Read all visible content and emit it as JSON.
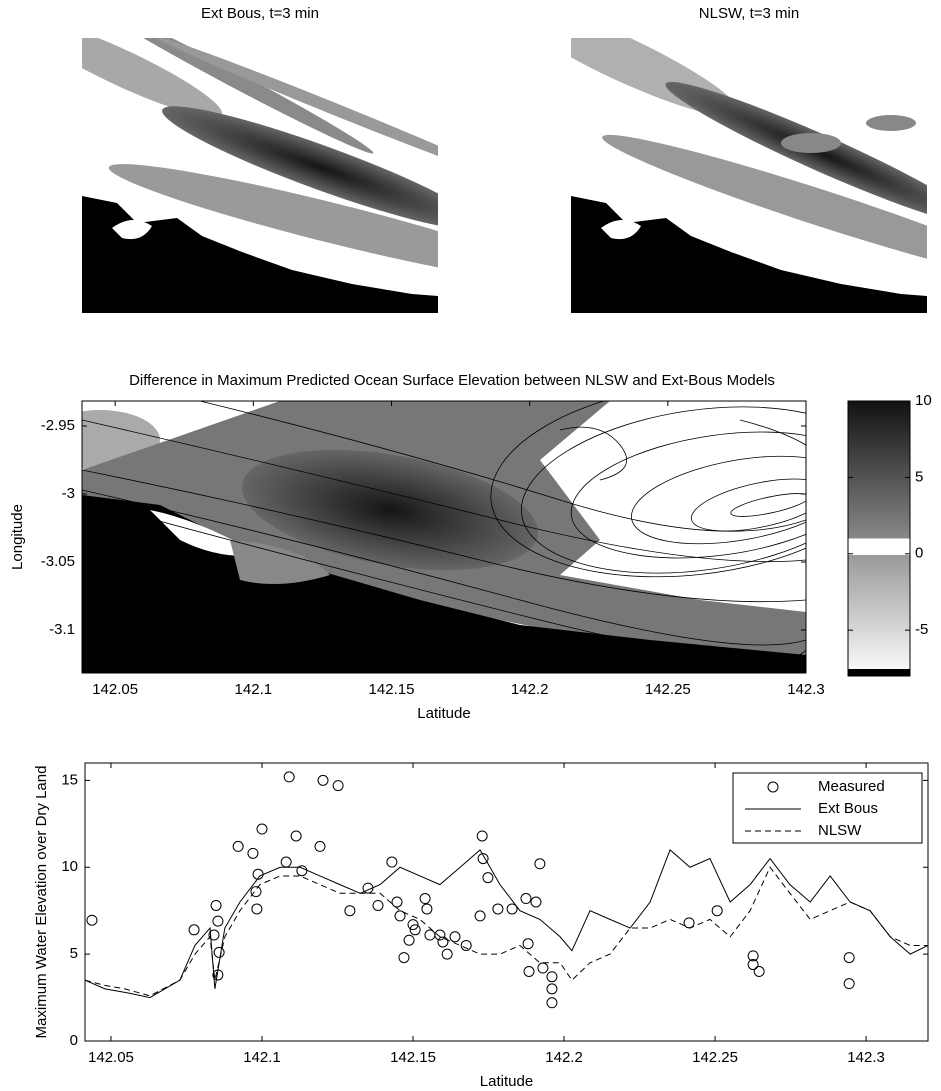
{
  "chart_data": [
    {
      "type": "image",
      "title": "Ext Bous, t=3 min"
    },
    {
      "type": "image",
      "title": "NLSW, t=3 min"
    },
    {
      "type": "heatmap",
      "title": "Difference in Maximum Predicted Ocean Surface Elevation between NLSW and Ext-Bous Models",
      "xlabel": "Latitude",
      "ylabel": "Longitude",
      "xlim": [
        142.038,
        142.3
      ],
      "ylim": [
        -3.1316,
        -2.9316
      ],
      "xticks": [
        142.05,
        142.1,
        142.15,
        142.2,
        142.25,
        142.3
      ],
      "yticks": [
        -2.95,
        -3,
        -3.05,
        -3.1
      ],
      "clim": [
        -8,
        10
      ],
      "cticks": [
        -5,
        0,
        5,
        10
      ]
    },
    {
      "type": "line",
      "xlabel": "Latitude",
      "ylabel": "Maximum Water Elevation over Dry Land",
      "xlim": [
        142.0414,
        142.3205
      ],
      "ylim": [
        0,
        16
      ],
      "xticks": [
        142.05,
        142.1,
        142.15,
        142.2,
        142.25,
        142.3
      ],
      "yticks": [
        0,
        5,
        10,
        15
      ],
      "legend": "upper right",
      "grid": false,
      "series": [
        {
          "name": "Measured",
          "color": "#000000",
          "style": "marker",
          "x": [
            142.0437,
            142.0775,
            142.0841,
            142.0848,
            142.0854,
            142.0858,
            142.0854,
            142.0921,
            142.097,
            142.1,
            142.098,
            142.0983,
            142.0987,
            142.108,
            142.109,
            142.1113,
            142.1132,
            142.1192,
            142.1202,
            142.1252,
            142.1291,
            142.1351,
            142.1384,
            142.143,
            142.1447,
            142.1457,
            142.147,
            142.1487,
            142.15,
            142.1507,
            142.154,
            142.1546,
            142.1556,
            142.1589,
            142.1599,
            142.1613,
            142.1639,
            142.1676,
            142.1722,
            142.1729,
            142.1732,
            142.1748,
            142.1781,
            142.1828,
            142.1874,
            142.1881,
            142.1884,
            142.1907,
            142.192,
            142.193,
            142.196,
            142.196,
            142.196,
            142.2414,
            142.2507,
            142.2626,
            142.2626,
            142.2646,
            142.2944,
            142.2944
          ],
          "values": [
            6.95,
            6.4,
            6.1,
            7.8,
            6.9,
            5.1,
            3.8,
            11.2,
            10.8,
            12.2,
            8.6,
            7.6,
            9.6,
            10.3,
            15.2,
            11.8,
            9.8,
            11.2,
            15.0,
            14.7,
            7.5,
            8.8,
            7.8,
            10.3,
            8.0,
            7.2,
            4.8,
            5.8,
            6.7,
            6.4,
            8.2,
            7.6,
            6.1,
            6.1,
            5.7,
            5.0,
            6.0,
            5.5,
            7.2,
            11.8,
            10.5,
            9.4,
            7.6,
            7.6,
            8.2,
            5.6,
            4.0,
            8.0,
            10.2,
            4.2,
            3.7,
            3.0,
            2.2,
            6.8,
            7.5,
            4.4,
            4.9,
            4.0,
            4.8,
            3.3
          ]
        },
        {
          "name": "Ext Bous",
          "color": "#000000",
          "style": "solid",
          "x": [
            142.0414,
            142.048,
            142.0546,
            142.0629,
            142.0728,
            142.0778,
            142.0828,
            142.0844,
            142.0877,
            142.0927,
            142.0993,
            142.106,
            142.1126,
            142.1192,
            142.1258,
            142.1325,
            142.1391,
            142.1457,
            142.1523,
            142.1589,
            142.1656,
            142.1722,
            142.1788,
            142.1854,
            142.192,
            142.1987,
            142.2026,
            142.2086,
            142.2152,
            142.2219,
            142.2285,
            142.2351,
            142.2417,
            142.2483,
            142.255,
            142.2616,
            142.2682,
            142.2748,
            142.2815,
            142.2881,
            142.2947,
            142.3013,
            142.308,
            142.3146,
            142.3205
          ],
          "values": [
            3.5,
            3.0,
            2.8,
            2.5,
            3.5,
            5.5,
            6.5,
            3.0,
            6.5,
            8.0,
            9.5,
            10.0,
            10.0,
            9.5,
            9.0,
            8.5,
            9.0,
            10.0,
            9.5,
            9.0,
            10.0,
            11.0,
            9.0,
            7.5,
            7.0,
            6.0,
            5.2,
            7.5,
            7.0,
            6.5,
            8.0,
            11.0,
            10.0,
            10.5,
            8.0,
            9.0,
            10.5,
            9.0,
            8.0,
            9.5,
            8.0,
            7.5,
            6.0,
            5.0,
            5.5
          ]
        },
        {
          "name": "NLSW",
          "color": "#000000",
          "style": "dashed",
          "x": [
            142.0414,
            142.048,
            142.0546,
            142.0629,
            142.0728,
            142.0778,
            142.0828,
            142.0844,
            142.0877,
            142.0927,
            142.0993,
            142.106,
            142.1126,
            142.1192,
            142.1258,
            142.1325,
            142.1391,
            142.1457,
            142.1523,
            142.1589,
            142.1656,
            142.1722,
            142.1788,
            142.1854,
            142.192,
            142.1987,
            142.2026,
            142.2086,
            142.2152,
            142.2219,
            142.2285,
            142.2351,
            142.2417,
            142.2483,
            142.255,
            142.2616,
            142.2682,
            142.2748,
            142.2815,
            142.2881,
            142.2947,
            142.3013,
            142.308,
            142.3146,
            142.3205
          ],
          "values": [
            3.5,
            3.2,
            3.0,
            2.6,
            3.5,
            5.0,
            6.0,
            3.5,
            6.0,
            7.5,
            9.0,
            9.5,
            9.5,
            9.0,
            8.5,
            8.5,
            8.5,
            7.5,
            7.0,
            6.0,
            5.5,
            5.0,
            5.0,
            5.5,
            4.5,
            4.5,
            3.5,
            4.5,
            5.0,
            6.5,
            6.5,
            7.0,
            6.5,
            7.0,
            6.0,
            7.5,
            10.0,
            8.5,
            7.0,
            7.5,
            8.0,
            7.5,
            6.0,
            5.5,
            5.5
          ]
        }
      ]
    }
  ]
}
